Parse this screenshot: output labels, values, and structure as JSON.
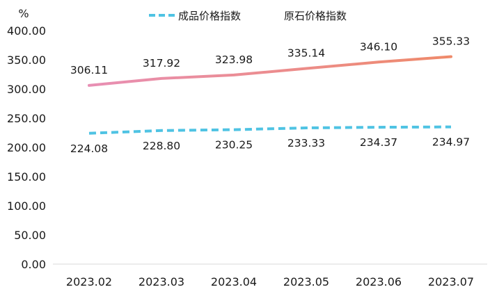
{
  "chart_data": {
    "type": "line",
    "ylabel": "%",
    "ylim": [
      0,
      400
    ],
    "yticks": [
      "0.00",
      "50.00",
      "100.00",
      "150.00",
      "200.00",
      "250.00",
      "300.00",
      "350.00",
      "400.00"
    ],
    "categories": [
      "2023.02",
      "2023.03",
      "2023.04",
      "2023.05",
      "2023.06",
      "2023.07"
    ],
    "legend_position": "top",
    "grid": false,
    "series": [
      {
        "name": "成品价格指数",
        "values": [
          224.08,
          228.8,
          230.25,
          233.33,
          234.37,
          234.97
        ],
        "labels": [
          "224.08",
          "228.80",
          "230.25",
          "233.33",
          "234.37",
          "234.97"
        ],
        "color": "#4fc3e3",
        "style": "dashed"
      },
      {
        "name": "原石价格指数",
        "values": [
          306.11,
          317.92,
          323.98,
          335.14,
          346.1,
          355.33
        ],
        "labels": [
          "306.11",
          "317.92",
          "323.98",
          "335.14",
          "346.10",
          "355.33"
        ],
        "color": "#ef8a6a",
        "color_start": "#e88fb4",
        "style": "solid"
      }
    ]
  }
}
